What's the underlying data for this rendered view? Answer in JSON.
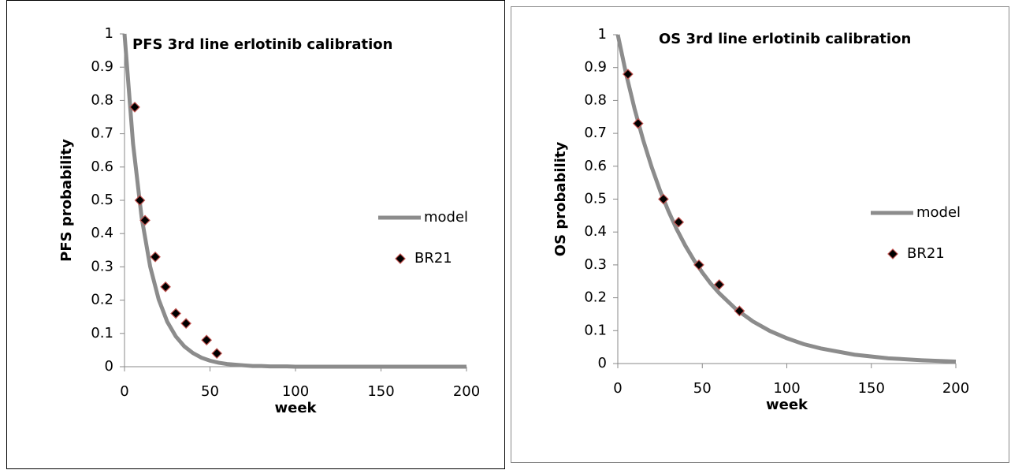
{
  "chart_data": [
    {
      "type": "line",
      "title": "PFS 3rd line erlotinib calibration",
      "x_label": "week",
      "y_label": "PFS probability",
      "xlim": [
        0,
        200
      ],
      "ylim": [
        0,
        1
      ],
      "xticks": [
        0,
        50,
        100,
        150,
        200
      ],
      "yticks": [
        0,
        0.1,
        0.2,
        0.3,
        0.4,
        0.5,
        0.6,
        0.7,
        0.8,
        0.9,
        1
      ],
      "grid": false,
      "legend": "right",
      "series": [
        {
          "name": "model",
          "type": "line",
          "color": "#8c8c8c",
          "x": [
            0,
            5,
            10,
            15,
            20,
            25,
            30,
            35,
            40,
            45,
            50,
            55,
            60,
            65,
            70,
            75,
            80,
            85,
            90,
            95,
            100,
            120,
            140,
            160,
            180,
            200
          ],
          "values": [
            1,
            0.67,
            0.449,
            0.301,
            0.202,
            0.135,
            0.091,
            0.061,
            0.041,
            0.027,
            0.018,
            0.012,
            0.008,
            0.006,
            0.004,
            0.002,
            0.002,
            0.001,
            0.001,
            0.001,
            0,
            0,
            0,
            0,
            0,
            0
          ]
        },
        {
          "name": "BR21",
          "type": "scatter",
          "color": "#000000",
          "edgecolor": "#c0504d",
          "x": [
            6,
            9,
            12,
            18,
            24,
            30,
            36,
            48,
            54
          ],
          "values": [
            0.78,
            0.5,
            0.44,
            0.33,
            0.24,
            0.16,
            0.13,
            0.08,
            0.04
          ]
        }
      ]
    },
    {
      "type": "line",
      "title": "OS 3rd line erlotinib calibration",
      "x_label": "week",
      "y_label": "OS probability",
      "xlim": [
        0,
        200
      ],
      "ylim": [
        0,
        1
      ],
      "xticks": [
        0,
        50,
        100,
        150,
        200
      ],
      "yticks": [
        0,
        0.1,
        0.2,
        0.3,
        0.4,
        0.5,
        0.6,
        0.7,
        0.8,
        0.9,
        1
      ],
      "grid": false,
      "legend": "right",
      "series": [
        {
          "name": "model",
          "type": "line",
          "color": "#8c8c8c",
          "x": [
            0,
            5,
            10,
            15,
            20,
            25,
            30,
            35,
            40,
            45,
            50,
            55,
            60,
            70,
            80,
            90,
            100,
            110,
            120,
            140,
            160,
            180,
            200
          ],
          "values": [
            1,
            0.879,
            0.773,
            0.68,
            0.598,
            0.526,
            0.463,
            0.407,
            0.358,
            0.315,
            0.277,
            0.243,
            0.214,
            0.165,
            0.128,
            0.099,
            0.077,
            0.059,
            0.046,
            0.027,
            0.016,
            0.01,
            0.006
          ]
        },
        {
          "name": "BR21",
          "type": "scatter",
          "color": "#000000",
          "edgecolor": "#c0504d",
          "x": [
            6,
            12,
            27,
            36,
            48,
            60,
            72
          ],
          "values": [
            0.88,
            0.73,
            0.5,
            0.43,
            0.3,
            0.24,
            0.16
          ]
        }
      ]
    }
  ]
}
